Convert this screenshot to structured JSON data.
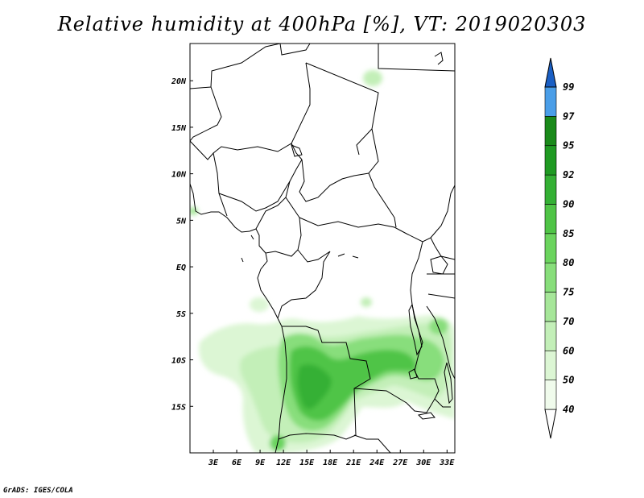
{
  "title": "Relative humidity at 400hPa [%], VT: 2019020303",
  "footer": "GrADS: IGES/COLA",
  "map": {
    "lon_range": [
      0,
      34
    ],
    "lat_range": [
      -20,
      24
    ],
    "x_ticks": [
      {
        "lon": 3,
        "label": "3E"
      },
      {
        "lon": 6,
        "label": "6E"
      },
      {
        "lon": 9,
        "label": "9E"
      },
      {
        "lon": 12,
        "label": "12E"
      },
      {
        "lon": 15,
        "label": "15E"
      },
      {
        "lon": 18,
        "label": "18E"
      },
      {
        "lon": 21,
        "label": "21E"
      },
      {
        "lon": 24,
        "label": "24E"
      },
      {
        "lon": 27,
        "label": "27E"
      },
      {
        "lon": 30,
        "label": "30E"
      },
      {
        "lon": 33,
        "label": "33E"
      }
    ],
    "y_ticks": [
      {
        "lat": 20,
        "label": "20N"
      },
      {
        "lat": 15,
        "label": "15N"
      },
      {
        "lat": 10,
        "label": "10N"
      },
      {
        "lat": 5,
        "label": "5N"
      },
      {
        "lat": 0,
        "label": "EQ"
      },
      {
        "lat": -5,
        "label": "5S"
      },
      {
        "lat": -10,
        "label": "10S"
      },
      {
        "lat": -15,
        "label": "15S"
      }
    ]
  },
  "colorbar": {
    "levels": [
      {
        "label": "40",
        "color": "#f0fbec"
      },
      {
        "label": "50",
        "color": "#dcf6d4"
      },
      {
        "label": "60",
        "color": "#c3efb8"
      },
      {
        "label": "70",
        "color": "#a6e699"
      },
      {
        "label": "75",
        "color": "#88de7b"
      },
      {
        "label": "80",
        "color": "#6bd45e"
      },
      {
        "label": "85",
        "color": "#4fc446"
      },
      {
        "label": "90",
        "color": "#34b034"
      },
      {
        "label": "92",
        "color": "#1f9a22"
      },
      {
        "label": "95",
        "color": "#1a8a1a"
      },
      {
        "label": "97",
        "color": "#4a9ee8"
      },
      {
        "label": "99",
        "color": "#2a78d8"
      }
    ],
    "below_color": "#ffffff",
    "above_color": "#1a5fc4"
  }
}
